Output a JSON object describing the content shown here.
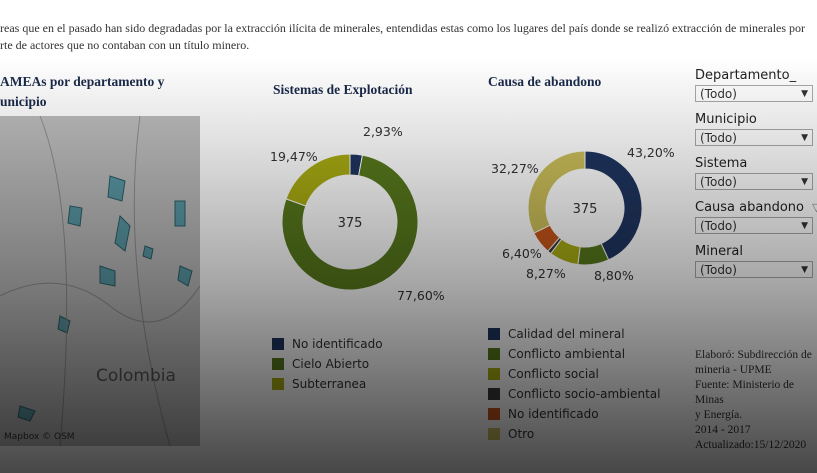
{
  "intro": [
    "reas que en el pasado han sido degradadas por la extracción ilícita de minerales, entendidas estas como los lugares del país donde se realizó extracción de minerales por",
    "rte de actores que no contaban con un título minero."
  ],
  "map": {
    "title_line1": "AMEAs por departamento y",
    "title_line2": "unicipio",
    "country_label": "Colombia",
    "attribution": "Mapbox © OSM"
  },
  "sistemas": {
    "title": "Sistemas de Explotación",
    "total": "375",
    "slices": [
      {
        "label": "No identificado",
        "value": 2.93,
        "pct": "2,93%",
        "color": "#1f3560"
      },
      {
        "label": "Cielo Abierto",
        "value": 77.6,
        "pct": "77,60%",
        "color": "#587a1c"
      },
      {
        "label": "Subterranea",
        "value": 19.47,
        "pct": "19,47%",
        "color": "#a9ad12"
      }
    ]
  },
  "causa": {
    "title": "Causa de abandono",
    "total": "375",
    "slices": [
      {
        "label": "Calidad del mineral",
        "value": 43.2,
        "pct": "43,20%",
        "color": "#1f3560"
      },
      {
        "label": "Conflicto ambiental",
        "value": 8.8,
        "pct": "8,80%",
        "color": "#587a1c"
      },
      {
        "label": "Conflicto social",
        "value": 8.27,
        "pct": "8,27%",
        "color": "#a9ad12"
      },
      {
        "label": "Conflicto socio-ambiental",
        "value": 1.06,
        "pct": "",
        "color": "#3a3a3a"
      },
      {
        "label": "No identificado",
        "value": 6.4,
        "pct": "6,40%",
        "color": "#c8561a"
      },
      {
        "label": "Otro",
        "value": 32.27,
        "pct": "32,27%",
        "color": "#cdc05a"
      }
    ]
  },
  "filters": [
    {
      "label": "Departamento_",
      "value": "(Todo)"
    },
    {
      "label": "Municipio",
      "value": "(Todo)"
    },
    {
      "label": "Sistema",
      "value": "(Todo)"
    },
    {
      "label": "Causa abandono",
      "value": "(Todo)",
      "has_filter_icon": true
    },
    {
      "label": "Mineral",
      "value": "(Todo)"
    }
  ],
  "note": [
    "Elaboró: Subdirección de",
    "mineria - UPME",
    "Fuente: Ministerio de Minas",
    "y Energía.",
    "2014 - 2017",
    "Actualizado:15/12/2020"
  ]
}
